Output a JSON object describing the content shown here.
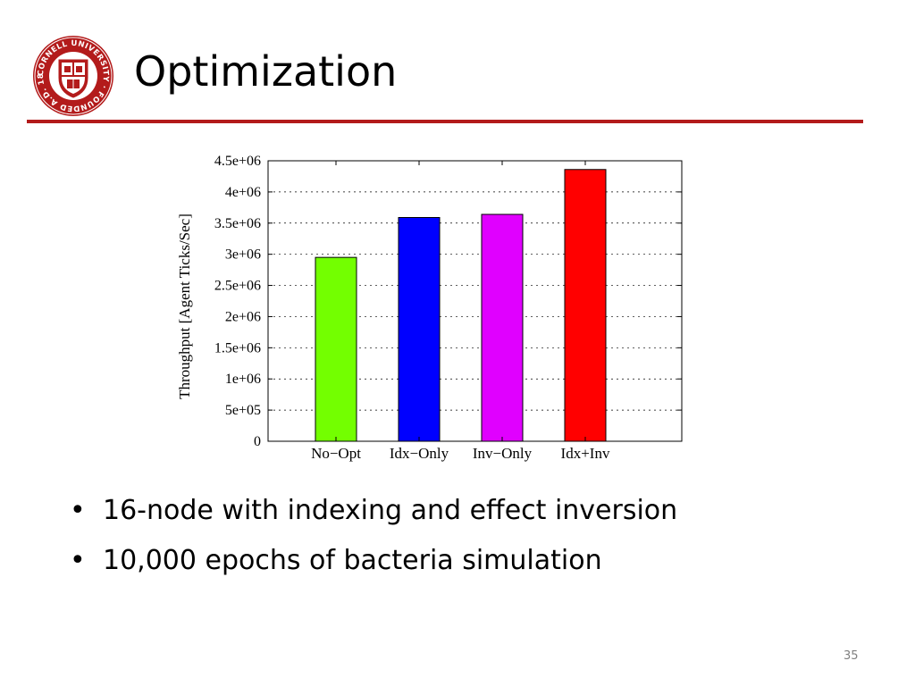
{
  "logo": {
    "ring_text": "CORNELL UNIVERSITY · FOUNDED A.D. 1865 ·",
    "color": "#b31b1b"
  },
  "slide": {
    "title": "Optimization",
    "rule_color": "#b31b1b",
    "bullet_glyph": "•",
    "bullets": [
      "16-node with indexing and effect inversion",
      "10,000 epochs of bacteria simulation"
    ],
    "page_number": "35"
  },
  "chart_data": {
    "type": "bar",
    "categories": [
      "No−Opt",
      "Idx−Only",
      "Inv−Only",
      "Idx+Inv"
    ],
    "values": [
      2950000,
      3590000,
      3640000,
      4360000
    ],
    "colors": [
      "#73ff00",
      "#0000ff",
      "#e000ff",
      "#ff0000"
    ],
    "ylabel": "Throughput [Agent Ticks/Sec]",
    "xlabel": "",
    "ylim": [
      0,
      4500000
    ],
    "yticks": [
      0,
      500000,
      1000000,
      1500000,
      2000000,
      2500000,
      3000000,
      3500000,
      4000000,
      4500000
    ],
    "ytick_labels": [
      "0",
      "5e+05",
      "1e+06",
      "1.5e+06",
      "2e+06",
      "2.5e+06",
      "3e+06",
      "3.5e+06",
      "4e+06",
      "4.5e+06"
    ],
    "grid": "horizontal dotted",
    "legend": "none"
  }
}
